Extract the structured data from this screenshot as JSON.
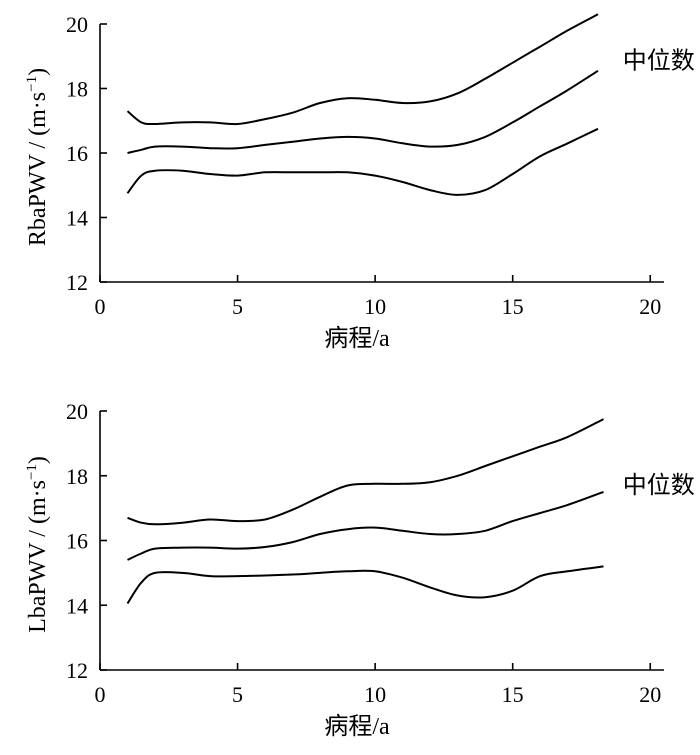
{
  "chart_data": [
    {
      "type": "line",
      "ylabel": "RbaPWV / (m·s",
      "ylabel_sup": "−1",
      "ylabel_close": ")",
      "xlabel": "病程/a",
      "xlim": [
        0,
        20.5
      ],
      "ylim": [
        12,
        20
      ],
      "xticks": [
        0,
        5,
        10,
        15,
        20
      ],
      "yticks": [
        12,
        14,
        16,
        18,
        20
      ],
      "series_label": "中位数",
      "series_label_at": {
        "x": 19,
        "y": 18.9
      },
      "series": [
        {
          "x": [
            1,
            1.5,
            2,
            3,
            4,
            5,
            6,
            7,
            8,
            9,
            10,
            11,
            12,
            13,
            14,
            15,
            16,
            17,
            18.1
          ],
          "y": [
            17.3,
            16.95,
            16.9,
            16.95,
            16.95,
            16.9,
            17.05,
            17.25,
            17.55,
            17.7,
            17.65,
            17.55,
            17.6,
            17.85,
            18.3,
            18.8,
            19.3,
            19.8,
            20.3
          ]
        },
        {
          "x": [
            1,
            1.5,
            2,
            3,
            4,
            5,
            6,
            7,
            8,
            9,
            10,
            11,
            12,
            13,
            14,
            15,
            16,
            17,
            18.1
          ],
          "y": [
            16.0,
            16.1,
            16.2,
            16.2,
            16.15,
            16.15,
            16.25,
            16.35,
            16.45,
            16.5,
            16.45,
            16.3,
            16.2,
            16.25,
            16.5,
            16.95,
            17.45,
            17.95,
            18.55
          ]
        },
        {
          "x": [
            1,
            1.5,
            2,
            3,
            4,
            5,
            6,
            7,
            8,
            9,
            10,
            11,
            12,
            13,
            14,
            15,
            16,
            17,
            18.1
          ],
          "y": [
            14.75,
            15.3,
            15.45,
            15.45,
            15.35,
            15.3,
            15.4,
            15.4,
            15.4,
            15.4,
            15.3,
            15.1,
            14.85,
            14.7,
            14.85,
            15.35,
            15.9,
            16.3,
            16.75
          ]
        }
      ]
    },
    {
      "type": "line",
      "ylabel": "LbaPWV / (m·s",
      "ylabel_sup": "−1",
      "ylabel_close": ")",
      "xlabel": "病程/a",
      "xlim": [
        0,
        20.5
      ],
      "ylim": [
        12,
        20
      ],
      "xticks": [
        0,
        5,
        10,
        15,
        20
      ],
      "yticks": [
        12,
        14,
        16,
        18,
        20
      ],
      "series_label": "中位数",
      "series_label_at": {
        "x": 19,
        "y": 17.75
      },
      "series": [
        {
          "x": [
            1,
            1.5,
            2,
            3,
            4,
            5,
            6,
            7,
            8,
            9,
            10,
            11,
            12,
            13,
            14,
            15,
            16,
            17,
            18.3
          ],
          "y": [
            16.7,
            16.55,
            16.5,
            16.55,
            16.65,
            16.6,
            16.65,
            16.95,
            17.35,
            17.7,
            17.75,
            17.75,
            17.8,
            18.0,
            18.3,
            18.6,
            18.9,
            19.2,
            19.75
          ]
        },
        {
          "x": [
            1,
            1.5,
            2,
            3,
            4,
            5,
            6,
            7,
            8,
            9,
            10,
            11,
            12,
            13,
            14,
            15,
            16,
            17,
            18.3
          ],
          "y": [
            15.4,
            15.6,
            15.75,
            15.78,
            15.78,
            15.75,
            15.8,
            15.95,
            16.2,
            16.35,
            16.4,
            16.3,
            16.2,
            16.2,
            16.3,
            16.6,
            16.85,
            17.1,
            17.5
          ]
        },
        {
          "x": [
            1,
            1.5,
            2,
            3,
            4,
            5,
            6,
            7,
            8,
            9,
            10,
            11,
            12,
            13,
            14,
            15,
            16,
            17,
            18.3
          ],
          "y": [
            14.05,
            14.7,
            15.0,
            15.0,
            14.9,
            14.9,
            14.92,
            14.95,
            15.0,
            15.05,
            15.05,
            14.85,
            14.55,
            14.3,
            14.25,
            14.45,
            14.9,
            15.05,
            15.2
          ]
        }
      ]
    }
  ]
}
